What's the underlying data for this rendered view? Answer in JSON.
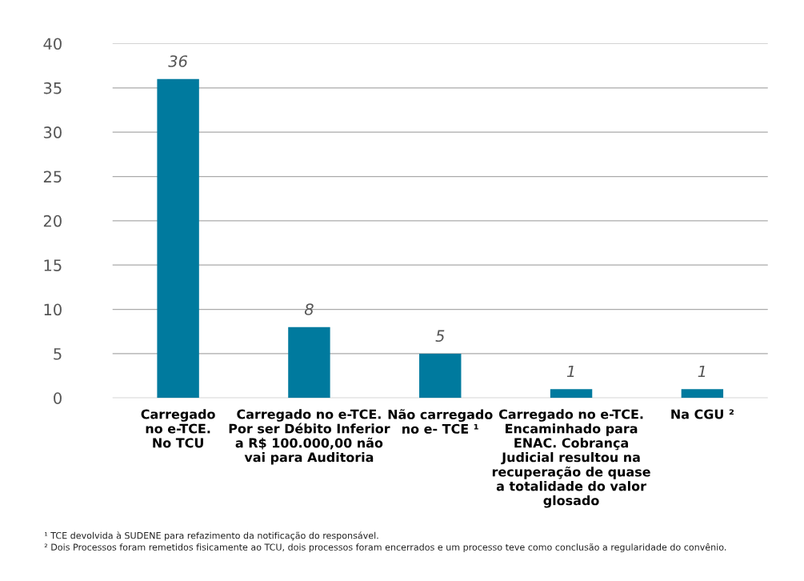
{
  "chart_data": {
    "type": "bar",
    "categories": [
      "Carregado\nno e-TCE.\nNo TCU",
      "Carregado no e-TCE.\nPor ser Débito Inferior\na R$ 100.000,00 não\nvai para Auditoria",
      "Não carregado\nno e- TCE ¹",
      "Carregado no e-TCE.\nEncaminhado para\nENAC. Cobrança\nJudicial resultou na\nrecuperação de quase\na totalidade do valor\nglosado",
      "Na CGU ²"
    ],
    "values": [
      36,
      8,
      5,
      1,
      1
    ],
    "color": "#007a9e",
    "data_labels": true,
    "ylim": [
      0,
      40
    ],
    "yticks": [
      0,
      5,
      10,
      15,
      20,
      25,
      30,
      35,
      40
    ],
    "grid": "y",
    "annotations": [
      "¹ TCE devolvida à SUDENE para refazimento da notificação do responsável.",
      "² Dois Processos foram remetidos fisicamente ao TCU, dois processos foram encerrados e um processo teve como conclusão a regularidade do convênio."
    ]
  }
}
